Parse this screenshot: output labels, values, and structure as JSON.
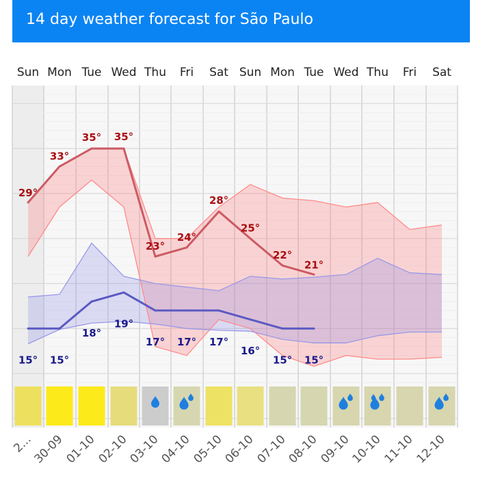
{
  "header": {
    "title": "14 day weather forecast for São Paulo"
  },
  "chart_data": {
    "type": "line",
    "title": "14 day weather forecast for São Paulo",
    "unit": "°C",
    "days": [
      {
        "day": "Sun",
        "date": "2..."
      },
      {
        "day": "Mon",
        "date": "30-09"
      },
      {
        "day": "Tue",
        "date": "01-10"
      },
      {
        "day": "Wed",
        "date": "02-10"
      },
      {
        "day": "Thu",
        "date": "03-10"
      },
      {
        "day": "Fri",
        "date": "04-10"
      },
      {
        "day": "Sat",
        "date": "05-10"
      },
      {
        "day": "Sun",
        "date": "06-10"
      },
      {
        "day": "Mon",
        "date": "07-10"
      },
      {
        "day": "Tue",
        "date": "08-10"
      },
      {
        "day": "Wed",
        "date": "09-10"
      },
      {
        "day": "Thu",
        "date": "10-10"
      },
      {
        "day": "Fri",
        "date": "11-10"
      },
      {
        "day": "Sat",
        "date": "12-10"
      }
    ],
    "series": [
      {
        "name": "max_temperature",
        "color": "#cc5a64",
        "values": [
          29,
          33,
          35,
          35,
          23,
          24,
          28,
          25,
          22,
          21
        ],
        "labels": [
          "29°",
          "33°",
          "35°",
          "35°",
          "23°",
          "24°",
          "28°",
          "25°",
          "22°",
          "21°"
        ]
      },
      {
        "name": "max_range_upper",
        "color": "#ff8a8a",
        "values": [
          29,
          33,
          35,
          35,
          25,
          25,
          28.5,
          31,
          29.5,
          29.2,
          28.5,
          29,
          26,
          26.5
        ]
      },
      {
        "name": "max_range_lower",
        "color": "#ff8a8a",
        "values": [
          23,
          28.5,
          31.5,
          28.5,
          13,
          12,
          16,
          15,
          12,
          10.8,
          12,
          11.6,
          11.6,
          11.8
        ]
      },
      {
        "name": "min_temperature",
        "color": "#5b59c2",
        "values": [
          15,
          15,
          18,
          19,
          17,
          17,
          17,
          16,
          15,
          15
        ],
        "labels": [
          "15°",
          "15°",
          "18°",
          "19°",
          "17°",
          "17°",
          "17°",
          "16°",
          "15°",
          "15°"
        ]
      },
      {
        "name": "min_range_upper",
        "color": "#9a99e8",
        "values": [
          18.5,
          18.8,
          24.5,
          20.8,
          20,
          19.6,
          19.2,
          20.8,
          20.5,
          20.7,
          21,
          22.8,
          21.2,
          21
        ]
      },
      {
        "name": "min_range_lower",
        "color": "#9a99e8",
        "values": [
          13.3,
          14.9,
          15.6,
          15.8,
          15.5,
          15,
          14.8,
          14.7,
          13.8,
          13.4,
          13.4,
          14.2,
          14.6,
          14.6
        ]
      }
    ],
    "ylim": [
      4,
      42
    ],
    "grid": true,
    "conditions": [
      {
        "icon": "sun",
        "color": "#ede05e"
      },
      {
        "icon": "sun",
        "color": "#fcea1a"
      },
      {
        "icon": "sun",
        "color": "#fcea1a"
      },
      {
        "icon": "sun",
        "color": "#e6dc7c"
      },
      {
        "icon": "rain-drop",
        "color": "#cccccc"
      },
      {
        "icon": "heavy-rain",
        "color": "#d6d7b0"
      },
      {
        "icon": "sun",
        "color": "#eee264"
      },
      {
        "icon": "sun",
        "color": "#e9e082"
      },
      {
        "icon": "cloudy",
        "color": "#d6d6b0"
      },
      {
        "icon": "cloudy",
        "color": "#d6d6b0"
      },
      {
        "icon": "heavy-rain",
        "color": "#d7d6ae"
      },
      {
        "icon": "heavy-rain",
        "color": "#d7d6ae"
      },
      {
        "icon": "cloudy",
        "color": "#d7d6ae"
      },
      {
        "icon": "heavy-rain",
        "color": "#d7d6ae"
      }
    ]
  }
}
